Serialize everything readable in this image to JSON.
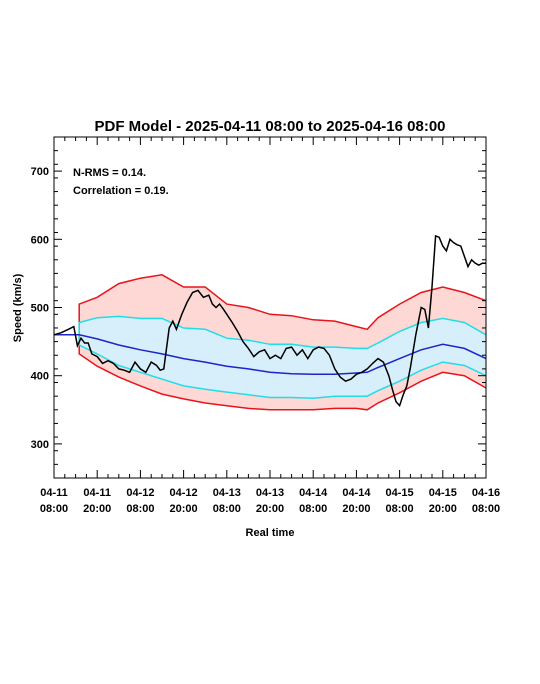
{
  "chart_data": {
    "type": "line",
    "title": "PDF Model - 2025-04-11 08:00 to 2025-04-16 08:00",
    "xlabel": "Real time",
    "ylabel": "Speed (km/s)",
    "x_range_hours": [
      0,
      120
    ],
    "ylim": [
      250,
      750
    ],
    "y_ticks": [
      300,
      400,
      500,
      600,
      700
    ],
    "x_ticks": [
      {
        "h": 0,
        "line1": "04-11",
        "line2": "08:00"
      },
      {
        "h": 12,
        "line1": "04-11",
        "line2": "20:00"
      },
      {
        "h": 24,
        "line1": "04-12",
        "line2": "08:00"
      },
      {
        "h": 36,
        "line1": "04-12",
        "line2": "20:00"
      },
      {
        "h": 48,
        "line1": "04-13",
        "line2": "08:00"
      },
      {
        "h": 60,
        "line1": "04-13",
        "line2": "20:00"
      },
      {
        "h": 72,
        "line1": "04-14",
        "line2": "08:00"
      },
      {
        "h": 84,
        "line1": "04-14",
        "line2": "20:00"
      },
      {
        "h": 96,
        "line1": "04-15",
        "line2": "08:00"
      },
      {
        "h": 108,
        "line1": "04-15",
        "line2": "20:00"
      },
      {
        "h": 120,
        "line1": "04-16",
        "line2": "08:00"
      }
    ],
    "annotations": [
      "N-RMS = 0.14.",
      "Correlation = 0.19."
    ],
    "colors": {
      "outer_band": "#fdd8d5",
      "inner_band": "#d6effb",
      "outer_line": "#e8141c",
      "inner_line": "#23dde6",
      "median_line": "#1e25c8",
      "observed_line": "#000000"
    },
    "band_x": [
      0,
      7,
      7,
      12,
      18,
      24,
      30,
      36,
      42,
      48,
      54,
      60,
      66,
      72,
      78,
      84,
      87,
      90,
      96,
      102,
      108,
      114,
      120
    ],
    "outer_upper": [
      460,
      460,
      505,
      515,
      535,
      543,
      548,
      530,
      530,
      505,
      500,
      490,
      488,
      482,
      480,
      472,
      468,
      485,
      505,
      522,
      530,
      522,
      510
    ],
    "inner_upper": [
      460,
      460,
      478,
      485,
      487,
      484,
      484,
      470,
      468,
      455,
      452,
      446,
      446,
      442,
      442,
      440,
      440,
      448,
      465,
      478,
      484,
      478,
      460
    ],
    "median": [
      460,
      460,
      460,
      454,
      445,
      438,
      432,
      425,
      420,
      414,
      410,
      405,
      403,
      402,
      402,
      404,
      405,
      412,
      425,
      438,
      446,
      440,
      425
    ],
    "inner_lower": [
      460,
      460,
      445,
      432,
      415,
      405,
      395,
      385,
      380,
      376,
      372,
      368,
      368,
      367,
      370,
      370,
      370,
      378,
      392,
      408,
      420,
      415,
      400
    ],
    "outer_lower": [
      460,
      460,
      432,
      414,
      398,
      385,
      373,
      366,
      360,
      356,
      352,
      350,
      350,
      350,
      352,
      352,
      350,
      360,
      375,
      392,
      405,
      400,
      382
    ],
    "observed": {
      "x": [
        0,
        2,
        4,
        5.5,
        6.5,
        7.5,
        8.5,
        9.5,
        10.5,
        12,
        13.5,
        15,
        16.5,
        18,
        19.5,
        21,
        22.5,
        24,
        25.5,
        27,
        28.5,
        29.5,
        30.5,
        32,
        33,
        34,
        35.5,
        37,
        38.5,
        40,
        41.5,
        43,
        44,
        45,
        46,
        47,
        48,
        49.5,
        51,
        52.5,
        54,
        55.5,
        57,
        58.5,
        60,
        61.5,
        63,
        64.5,
        66,
        67.5,
        69,
        70.5,
        72,
        73.5,
        75,
        76.5,
        78,
        79.5,
        81,
        82.5,
        84,
        85.5,
        87,
        88.5,
        90,
        91.5,
        93,
        94,
        95,
        96,
        97,
        98,
        99,
        100.5,
        102,
        103,
        104,
        105,
        106,
        107,
        108,
        109,
        110,
        111,
        112,
        113,
        114,
        115,
        116,
        117,
        118,
        119,
        120
      ],
      "y": [
        460,
        463,
        468,
        472,
        444,
        455,
        448,
        448,
        432,
        428,
        418,
        422,
        418,
        410,
        408,
        405,
        420,
        410,
        405,
        420,
        415,
        408,
        410,
        470,
        480,
        468,
        490,
        508,
        522,
        525,
        515,
        518,
        505,
        500,
        505,
        498,
        490,
        478,
        465,
        450,
        440,
        428,
        435,
        438,
        425,
        430,
        425,
        440,
        442,
        430,
        438,
        425,
        438,
        442,
        440,
        430,
        410,
        398,
        392,
        395,
        402,
        405,
        410,
        418,
        425,
        420,
        400,
        380,
        362,
        356,
        372,
        385,
        412,
        460,
        500,
        497,
        470,
        530,
        605,
        603,
        590,
        583,
        600,
        595,
        592,
        590,
        575,
        560,
        570,
        565,
        562,
        565,
        565
      ]
    }
  }
}
